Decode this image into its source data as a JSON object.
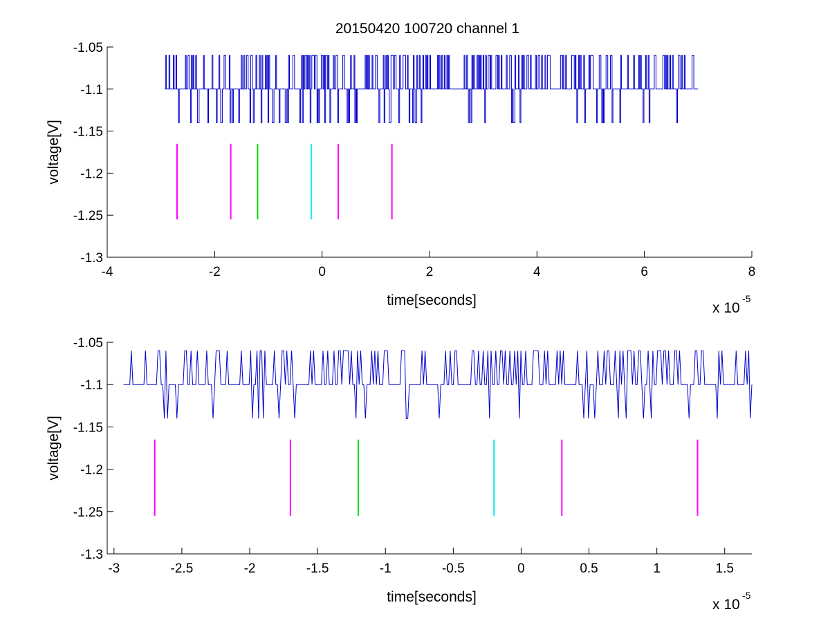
{
  "figure": {
    "title": "20150420 100720 channel 1",
    "trace_color": "#0000cc",
    "marker_colors": {
      "magenta": "#ff00ff",
      "green": "#00dd00",
      "cyan": "#00eeee"
    }
  },
  "chart_data": [
    {
      "type": "line",
      "title": "20150420 100720 channel 1",
      "xlabel": "time[seconds]",
      "ylabel": "voltage[V]",
      "x_scale_label": {
        "base": "x 10",
        "exponent": "-5"
      },
      "xlim": [
        -4,
        8
      ],
      "ylim": [
        -1.3,
        -1.05
      ],
      "x_ticks": [
        -4,
        -2,
        0,
        2,
        4,
        6,
        8
      ],
      "x_tick_labels": [
        "-4",
        "-2",
        "0",
        "2",
        "4",
        "6",
        "8"
      ],
      "y_ticks": [
        -1.05,
        -1.1,
        -1.15,
        -1.2,
        -1.25,
        -1.3
      ],
      "y_tick_labels": [
        "-1.05",
        "-1.1",
        "-1.15",
        "-1.2",
        "-1.25",
        "-1.3"
      ],
      "grid": false,
      "signal": {
        "x_start": -2.93,
        "x_end": 7.0,
        "baseline": -1.1,
        "levels": [
          -1.06,
          -1.1,
          -1.14
        ],
        "description_values": "step-like noisy trace between -1.14 and -1.06 around baseline -1.1"
      },
      "markers": [
        {
          "x": -2.7,
          "y0": -1.255,
          "y1": -1.165,
          "color": "magenta"
        },
        {
          "x": -1.7,
          "y0": -1.255,
          "y1": -1.165,
          "color": "magenta"
        },
        {
          "x": -1.2,
          "y0": -1.255,
          "y1": -1.165,
          "color": "green"
        },
        {
          "x": -0.2,
          "y0": -1.255,
          "y1": -1.165,
          "color": "cyan"
        },
        {
          "x": 0.3,
          "y0": -1.255,
          "y1": -1.165,
          "color": "magenta"
        },
        {
          "x": 1.3,
          "y0": -1.255,
          "y1": -1.165,
          "color": "magenta"
        }
      ]
    },
    {
      "type": "line",
      "title": "",
      "xlabel": "time[seconds]",
      "ylabel": "voltage[V]",
      "x_scale_label": {
        "base": "x 10",
        "exponent": "-5"
      },
      "xlim": [
        -3.05,
        1.7
      ],
      "ylim": [
        -1.3,
        -1.05
      ],
      "x_ticks": [
        -3,
        -2.5,
        -2,
        -1.5,
        -1,
        -0.5,
        0,
        0.5,
        1,
        1.5
      ],
      "x_tick_labels": [
        "-3",
        "-2.5",
        "-2",
        "-1.5",
        "-1",
        "-0.5",
        "0",
        "0.5",
        "1",
        "1.5"
      ],
      "y_ticks": [
        -1.05,
        -1.1,
        -1.15,
        -1.2,
        -1.25,
        -1.3
      ],
      "y_tick_labels": [
        "-1.05",
        "-1.1",
        "-1.15",
        "-1.2",
        "-1.25",
        "-1.3"
      ],
      "grid": false,
      "signal": {
        "x_start": -2.93,
        "x_end": 1.7,
        "baseline": -1.1,
        "levels": [
          -1.06,
          -1.1,
          -1.14
        ],
        "description_values": "step-like noisy trace between -1.14 and -1.06 around baseline -1.1"
      },
      "markers": [
        {
          "x": -2.7,
          "y0": -1.255,
          "y1": -1.165,
          "color": "magenta"
        },
        {
          "x": -1.7,
          "y0": -1.255,
          "y1": -1.165,
          "color": "magenta"
        },
        {
          "x": -1.2,
          "y0": -1.255,
          "y1": -1.165,
          "color": "green"
        },
        {
          "x": -0.2,
          "y0": -1.255,
          "y1": -1.165,
          "color": "cyan"
        },
        {
          "x": 0.3,
          "y0": -1.255,
          "y1": -1.165,
          "color": "magenta"
        },
        {
          "x": 1.3,
          "y0": -1.255,
          "y1": -1.165,
          "color": "magenta"
        }
      ]
    }
  ]
}
